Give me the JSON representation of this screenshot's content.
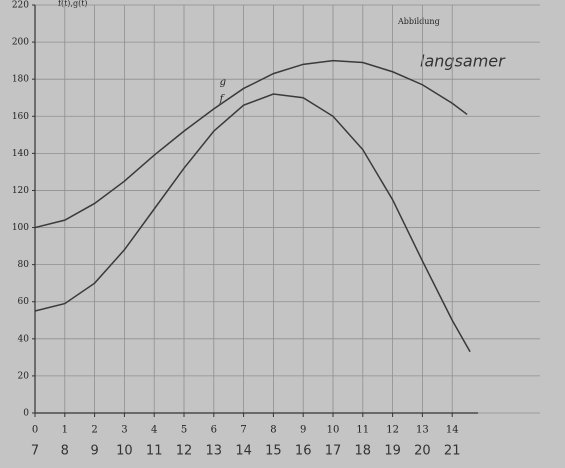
{
  "chart_data": {
    "type": "line",
    "title": "Abbildung",
    "note": "langsamer",
    "y_label": "f(t),g(t)",
    "xlim": [
      0,
      14.6
    ],
    "ylim": [
      0,
      220
    ],
    "xticks": [
      0,
      1,
      2,
      3,
      4,
      5,
      6,
      7,
      8,
      9,
      10,
      11,
      12,
      13,
      14
    ],
    "yticks": [
      0,
      20,
      40,
      60,
      80,
      100,
      120,
      140,
      160,
      180,
      200,
      220
    ],
    "hour_labels": [
      "7",
      "8",
      "9",
      "10",
      "11",
      "12",
      "13",
      "14",
      "15",
      "16",
      "17",
      "18",
      "19",
      "20",
      "21"
    ],
    "grid": true,
    "series": [
      {
        "name": "g",
        "color": "#3a3a3a",
        "x": [
          0,
          1,
          2,
          3,
          4,
          5,
          6,
          7,
          8,
          9,
          10,
          11,
          12,
          13,
          14,
          14.5
        ],
        "values": [
          100,
          104,
          113,
          125,
          139,
          152,
          164,
          175,
          183,
          188,
          190,
          189,
          184,
          177,
          167,
          161
        ]
      },
      {
        "name": "f",
        "color": "#3a3a3a",
        "x": [
          0,
          1,
          2,
          3,
          4,
          5,
          6,
          7,
          8,
          9,
          10,
          11,
          12,
          13,
          14,
          14.6
        ],
        "values": [
          55,
          59,
          70,
          88,
          110,
          132,
          152,
          166,
          172,
          170,
          160,
          142,
          115,
          82,
          50,
          33
        ]
      }
    ]
  }
}
